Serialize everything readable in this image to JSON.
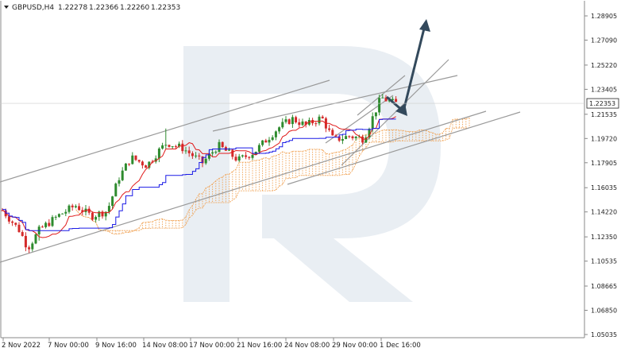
{
  "header": {
    "menu_icon": "triangle-down-icon",
    "symbol": "GBPUSD,H4",
    "open": "1.22278",
    "high": "1.22366",
    "low": "1.22260",
    "close": "1.22353"
  },
  "watermark": {
    "name": "R-logo-watermark"
  },
  "chart_data": {
    "type": "candlestick",
    "title": "",
    "y_ticks": [
      "1.28905",
      "1.27090",
      "1.25220",
      "1.23405",
      "1.21535",
      "1.19720",
      "1.17905",
      "1.16035",
      "1.14220",
      "1.12350",
      "1.10535",
      "1.08665",
      "1.06850",
      "1.05035"
    ],
    "x_ticks": [
      "2 Nov 2022",
      "7 Nov 00:00",
      "9 Nov 16:00",
      "14 Nov 08:00",
      "17 Nov 00:00",
      "21 Nov 16:00",
      "24 Nov 08:00",
      "29 Nov 00:00",
      "1 Dec 16:00"
    ],
    "current_price": "1.22353",
    "ylim": [
      1.05035,
      1.28905
    ],
    "indicators": [
      "Ichimoku cloud",
      "Tenkan-sen (red)",
      "Kijun-sen (blue)"
    ],
    "colors": {
      "bull": "#2e8b2e",
      "bear": "#d42a2a",
      "tenkan": "#e01b1b",
      "kijun": "#1a1ae6",
      "cloud": "#f0a050",
      "channel": "#9a9a9a",
      "arrow": "#33495c"
    }
  }
}
